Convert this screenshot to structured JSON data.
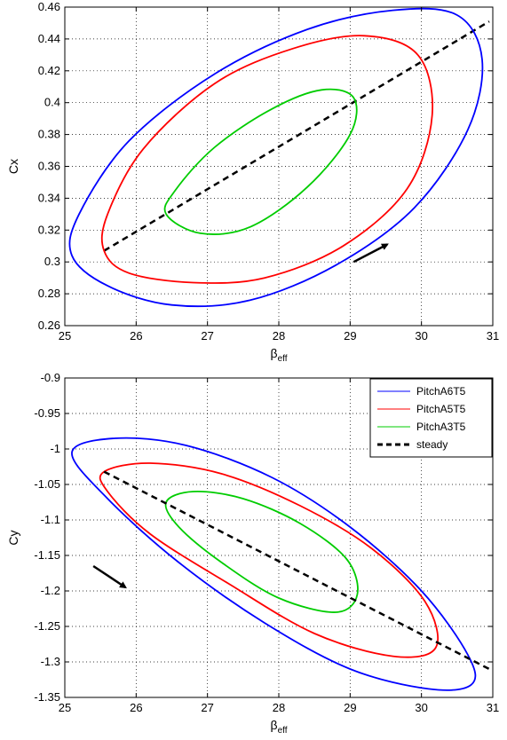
{
  "chart_data": [
    {
      "type": "line",
      "xlabel": "β",
      "xlabel_sub": "eff",
      "ylabel": "Cx",
      "xlim": [
        25,
        31
      ],
      "ylim": [
        0.26,
        0.46
      ],
      "xticks": [
        25,
        26,
        27,
        28,
        29,
        30,
        31
      ],
      "xtick_labels": [
        "25",
        "26",
        "27",
        "28",
        "29",
        "30",
        "31"
      ],
      "yticks": [
        0.26,
        0.28,
        0.3,
        0.32,
        0.34,
        0.36,
        0.38,
        0.4,
        0.42,
        0.44,
        0.46
      ],
      "ytick_labels": [
        "0.26",
        "0.28",
        "0.3",
        "0.32",
        "0.34",
        "0.36",
        "0.38",
        "0.4",
        "0.42",
        "0.44",
        "0.46"
      ],
      "grid": true,
      "arrow": {
        "from": [
          29.05,
          0.3
        ],
        "to": [
          29.52,
          0.311
        ],
        "direction": "up-right"
      },
      "series": [
        {
          "name": "steady",
          "style": "dashed",
          "color": "#000000",
          "x": [
            25.55,
            30.95
          ],
          "y": [
            0.307,
            0.451
          ]
        },
        {
          "name": "PitchA6T5",
          "color": "#0000ff",
          "shape": "ellipse",
          "center": [
            27.95,
            0.366
          ],
          "extent_x": [
            25.1,
            30.85
          ],
          "extent_y": [
            0.271,
            0.46
          ],
          "tilt": "positive",
          "x": [
            25.1,
            25.6,
            26.5,
            27.6,
            28.8,
            29.9,
            30.65,
            30.85,
            30.5,
            29.6,
            28.4,
            27.1,
            25.9,
            25.2,
            25.1
          ],
          "y": [
            0.304,
            0.285,
            0.273,
            0.276,
            0.298,
            0.334,
            0.383,
            0.427,
            0.455,
            0.458,
            0.446,
            0.418,
            0.376,
            0.33,
            0.304
          ]
        },
        {
          "name": "PitchA5T5",
          "color": "#ff0000",
          "shape": "ellipse",
          "center": [
            27.85,
            0.365
          ],
          "extent_x": [
            25.55,
            30.15
          ],
          "extent_y": [
            0.286,
            0.442
          ],
          "tilt": "positive",
          "x": [
            25.55,
            25.9,
            26.8,
            27.8,
            28.9,
            29.8,
            30.15,
            29.95,
            29.2,
            28.2,
            27.1,
            26.1,
            25.6,
            25.55
          ],
          "y": [
            0.307,
            0.293,
            0.287,
            0.29,
            0.31,
            0.346,
            0.392,
            0.43,
            0.442,
            0.434,
            0.412,
            0.371,
            0.33,
            0.307
          ]
        },
        {
          "name": "PitchA3T5",
          "color": "#00cc00",
          "shape": "ellipse",
          "center": [
            27.7,
            0.362
          ],
          "extent_x": [
            26.4,
            29.1
          ],
          "extent_y": [
            0.316,
            0.408
          ],
          "tilt": "positive",
          "x": [
            26.42,
            26.9,
            27.6,
            28.4,
            29.0,
            29.05,
            28.6,
            27.9,
            27.1,
            26.55,
            26.42
          ],
          "y": [
            0.33,
            0.318,
            0.322,
            0.347,
            0.38,
            0.403,
            0.408,
            0.396,
            0.372,
            0.345,
            0.33
          ]
        }
      ]
    },
    {
      "type": "line",
      "xlabel": "β",
      "xlabel_sub": "eff",
      "ylabel": "Cy",
      "xlim": [
        25,
        31
      ],
      "ylim": [
        -1.35,
        -0.9
      ],
      "xticks": [
        25,
        26,
        27,
        28,
        29,
        30,
        31
      ],
      "xtick_labels": [
        "25",
        "26",
        "27",
        "28",
        "29",
        "30",
        "31"
      ],
      "yticks": [
        -1.35,
        -1.3,
        -1.25,
        -1.2,
        -1.15,
        -1.1,
        -1.05,
        -1.0,
        -0.95,
        -0.9
      ],
      "ytick_labels": [
        "-1.35",
        "-1.3",
        "-1.25",
        "-1.2",
        "-1.15",
        "-1.1",
        "-1.05",
        "-1",
        "-0.95",
        "-0.9"
      ],
      "grid": true,
      "legend_position": "top-right",
      "arrow": {
        "from": [
          25.4,
          -1.165
        ],
        "to": [
          25.85,
          -1.195
        ],
        "direction": "down-right"
      },
      "series": [
        {
          "name": "PitchA6T5",
          "color": "#0000ff",
          "shape": "ellipse",
          "center": [
            27.95,
            -1.16
          ],
          "extent_x": [
            25.1,
            30.75
          ],
          "extent_y": [
            -1.338,
            -0.982
          ],
          "tilt": "negative",
          "x": [
            25.1,
            25.7,
            26.7,
            27.9,
            29.0,
            30.0,
            30.65,
            30.7,
            30.1,
            29.0,
            27.8,
            26.6,
            25.6,
            25.1
          ],
          "y": [
            -1.005,
            -0.985,
            -0.995,
            -1.04,
            -1.11,
            -1.2,
            -1.29,
            -1.332,
            -1.338,
            -1.31,
            -1.245,
            -1.16,
            -1.07,
            -1.005
          ]
        },
        {
          "name": "PitchA5T5",
          "color": "#ff0000",
          "shape": "ellipse",
          "center": [
            27.85,
            -1.16
          ],
          "extent_x": [
            25.55,
            30.2
          ],
          "extent_y": [
            -1.292,
            -1.02
          ],
          "tilt": "negative",
          "x": [
            25.55,
            26.2,
            27.2,
            28.3,
            29.3,
            30.05,
            30.2,
            29.6,
            28.5,
            27.3,
            26.2,
            25.6,
            25.55
          ],
          "y": [
            -1.032,
            -1.02,
            -1.035,
            -1.08,
            -1.14,
            -1.215,
            -1.28,
            -1.292,
            -1.26,
            -1.19,
            -1.12,
            -1.06,
            -1.032
          ]
        },
        {
          "name": "PitchA3T5",
          "color": "#00cc00",
          "shape": "ellipse",
          "center": [
            27.75,
            -1.14
          ],
          "extent_x": [
            26.4,
            29.1
          ],
          "extent_y": [
            -1.232,
            -1.058
          ],
          "tilt": "negative",
          "x": [
            26.42,
            26.8,
            27.5,
            28.3,
            28.95,
            29.1,
            28.8,
            28.0,
            27.2,
            26.6,
            26.42
          ],
          "y": [
            -1.075,
            -1.06,
            -1.07,
            -1.105,
            -1.155,
            -1.205,
            -1.23,
            -1.21,
            -1.16,
            -1.11,
            -1.075
          ]
        },
        {
          "name": "steady",
          "style": "dashed",
          "color": "#000000",
          "x": [
            25.55,
            30.95
          ],
          "y": [
            -1.032,
            -1.31
          ]
        }
      ]
    }
  ]
}
